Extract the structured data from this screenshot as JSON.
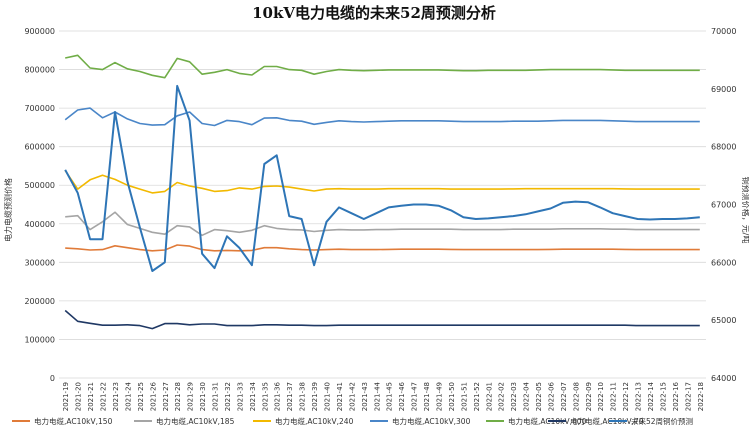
{
  "chart_data": {
    "type": "line",
    "title": "10kV电力电缆的未来52周预测分析",
    "ylabel": "电力电缆预测价格",
    "y2label": "铜预测价格，元/吨",
    "ylim": [
      0,
      900000
    ],
    "y2lim": [
      64000,
      70000
    ],
    "yticks": [
      "0",
      "100000",
      "200000",
      "300000",
      "400000",
      "500000",
      "600000",
      "700000",
      "800000",
      "900000"
    ],
    "y2ticks": [
      "64000",
      "65000",
      "66000",
      "67000",
      "68000",
      "69000",
      "70000"
    ],
    "grid": true,
    "legend_position": "bottom",
    "categories": [
      "2021-19",
      "2021-20",
      "2021-21",
      "2021-22",
      "2021-23",
      "2021-24",
      "2021-25",
      "2021-26",
      "2021-27",
      "2021-28",
      "2021-29",
      "2021-30",
      "2021-31",
      "2021-32",
      "2021-33",
      "2021-34",
      "2021-35",
      "2021-36",
      "2021-37",
      "2021-38",
      "2021-39",
      "2021-40",
      "2021-41",
      "2021-42",
      "2021-43",
      "2021-44",
      "2021-45",
      "2021-46",
      "2021-47",
      "2021-48",
      "2021-49",
      "2021-50",
      "2021-51",
      "2021-52",
      "2022-01",
      "2022-02",
      "2022-03",
      "2022-04",
      "2022-05",
      "2022-06",
      "2022-07",
      "2022-08",
      "2022-09",
      "2022-10",
      "2022-11",
      "2022-12",
      "2022-13",
      "2022-14",
      "2022-15",
      "2022-16",
      "2022-17",
      "2022-18"
    ],
    "series": [
      {
        "name": "电力电缆,AC10kV,150",
        "color": "#e07b39",
        "axis": "left",
        "values": [
          337000,
          335000,
          332000,
          333000,
          343000,
          338000,
          333000,
          330000,
          332000,
          345000,
          342000,
          333000,
          330000,
          331000,
          330000,
          331000,
          338000,
          338000,
          335000,
          333000,
          332000,
          333000,
          334000,
          333000,
          333000,
          333000,
          333500,
          334000,
          334000,
          334000,
          334000,
          333500,
          333000,
          333000,
          333000,
          333000,
          333000,
          333000,
          333000,
          333500,
          334000,
          334000,
          334000,
          334000,
          334000,
          333500,
          333000,
          333000,
          333000,
          333000,
          333000,
          333000
        ]
      },
      {
        "name": "电力电缆,AC10kV,185",
        "color": "#a5a5a5",
        "axis": "left",
        "values": [
          418000,
          421000,
          385000,
          405000,
          430000,
          398000,
          388000,
          378000,
          373000,
          395000,
          392000,
          370000,
          385000,
          382000,
          378000,
          383000,
          395000,
          388000,
          385000,
          384000,
          380000,
          383000,
          385000,
          384000,
          384000,
          385000,
          385000,
          386000,
          386000,
          386000,
          386000,
          386000,
          385000,
          385000,
          385000,
          385000,
          386000,
          386000,
          386000,
          386000,
          387000,
          387000,
          387000,
          387000,
          386000,
          386000,
          385000,
          385000,
          385000,
          385000,
          385000,
          385000
        ]
      },
      {
        "name": "电力电缆,AC10kV,240",
        "color": "#f2b900",
        "axis": "left",
        "values": [
          538000,
          490000,
          514000,
          526000,
          515000,
          500000,
          490000,
          480000,
          484000,
          507000,
          498000,
          492000,
          484000,
          486000,
          493000,
          490000,
          497000,
          498000,
          495000,
          490000,
          485000,
          490000,
          491000,
          490000,
          490000,
          490000,
          491000,
          491000,
          491000,
          491000,
          491000,
          490000,
          490000,
          490000,
          490000,
          490000,
          490500,
          491000,
          491000,
          491000,
          491000,
          491000,
          491000,
          491000,
          491000,
          490500,
          490000,
          490000,
          490000,
          490000,
          490000,
          490000
        ]
      },
      {
        "name": "电力电缆,AC10kV,300",
        "color": "#4a86c8",
        "axis": "left",
        "values": [
          670000,
          695000,
          700000,
          675000,
          690000,
          672000,
          660000,
          656000,
          657000,
          680000,
          690000,
          660000,
          655000,
          668000,
          665000,
          657000,
          674000,
          675000,
          668000,
          666000,
          658000,
          663000,
          667000,
          665000,
          664000,
          665000,
          666000,
          667000,
          667000,
          667000,
          667000,
          666000,
          665000,
          665000,
          665000,
          665000,
          666000,
          666000,
          666000,
          667000,
          668000,
          668000,
          668000,
          668000,
          667000,
          666000,
          665000,
          665000,
          665000,
          665000,
          665000,
          665000
        ]
      },
      {
        "name": "电力电缆,AC10kV,400",
        "color": "#70ad47",
        "axis": "left",
        "values": [
          830000,
          837000,
          804000,
          800000,
          818000,
          802000,
          795000,
          785000,
          779000,
          829000,
          820000,
          788000,
          793000,
          800000,
          790000,
          786000,
          808000,
          808000,
          800000,
          798000,
          788000,
          795000,
          800000,
          798000,
          797000,
          798000,
          799000,
          799000,
          799000,
          799000,
          799000,
          798000,
          797000,
          797000,
          798000,
          798000,
          798000,
          798000,
          799000,
          800000,
          800000,
          800000,
          800000,
          800000,
          799000,
          798000,
          798000,
          798000,
          798000,
          798000,
          798000,
          798000
        ]
      },
      {
        "name": "电力电缆,AC10kV,70",
        "color": "#1f3864",
        "axis": "left",
        "values": [
          175000,
          147000,
          142000,
          137000,
          137000,
          138000,
          136000,
          128000,
          141000,
          141000,
          138000,
          140000,
          140000,
          136000,
          136000,
          136000,
          138000,
          138000,
          137000,
          137000,
          136000,
          136000,
          137000,
          137000,
          137000,
          137000,
          137000,
          137000,
          137000,
          137000,
          137000,
          137000,
          137000,
          137000,
          137000,
          137000,
          137000,
          137000,
          137000,
          137000,
          137000,
          137000,
          137000,
          137000,
          137000,
          137000,
          136000,
          136000,
          136000,
          136000,
          136000,
          136000
        ]
      },
      {
        "name": "未来52周铜价预测",
        "color": "#2e75b6",
        "axis": "right",
        "values": [
          67600,
          67200,
          66400,
          66400,
          68600,
          67400,
          66600,
          65850,
          66000,
          69050,
          68450,
          66150,
          65900,
          66450,
          66250,
          65950,
          67700,
          67850,
          66800,
          66750,
          65950,
          66700,
          66950,
          66850,
          66750,
          66850,
          66950,
          66980,
          67000,
          67000,
          66980,
          66900,
          66780,
          66750,
          66760,
          66780,
          66800,
          66830,
          66880,
          66930,
          67030,
          67050,
          67040,
          66950,
          66850,
          66800,
          66750,
          66740,
          66750,
          66750,
          66760,
          66780
        ]
      }
    ]
  }
}
